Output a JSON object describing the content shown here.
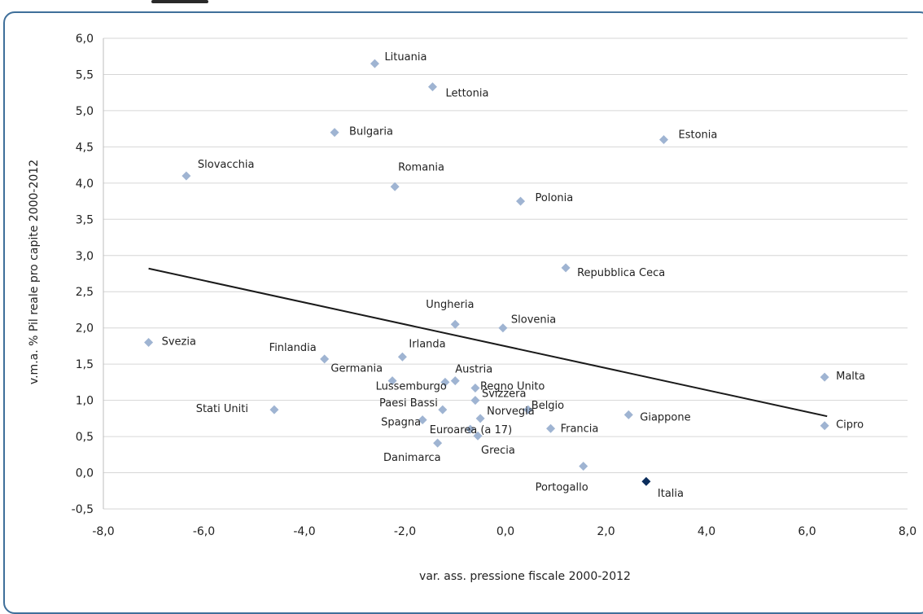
{
  "chart_data": {
    "type": "scatter",
    "title": "",
    "xlabel": "var. ass. pressione fiscale 2000-2012",
    "ylabel": "v.m.a. % Pil reale pro capite 2000-2012",
    "xlim": [
      -8.0,
      8.0
    ],
    "ylim": [
      -0.5,
      6.0
    ],
    "x_ticks": [
      "-8,0",
      "-6,0",
      "-4,0",
      "-2,0",
      "0,0",
      "2,0",
      "4,0",
      "6,0",
      "8,0"
    ],
    "y_ticks": [
      "6,0",
      "5,5",
      "5,0",
      "4,5",
      "4,0",
      "3,5",
      "3,0",
      "2,5",
      "2,0",
      "1,5",
      "1,0",
      "0,5",
      "0,0",
      "-0,5"
    ],
    "grid": "horizontal",
    "marker_color": "#9fb4d2",
    "highlight_color": "#0b2d5c",
    "trendline_color": "#1a1a1a",
    "trendline": {
      "x": [
        -7.1,
        6.4
      ],
      "y": [
        2.82,
        0.78
      ]
    },
    "points": [
      {
        "name": "Lituania",
        "x": -2.6,
        "y": 5.65
      },
      {
        "name": "Lettonia",
        "x": -1.45,
        "y": 5.33
      },
      {
        "name": "Bulgaria",
        "x": -3.4,
        "y": 4.7
      },
      {
        "name": "Estonia",
        "x": 3.15,
        "y": 4.6
      },
      {
        "name": "Slovacchia",
        "x": -6.35,
        "y": 4.1
      },
      {
        "name": "Romania",
        "x": -2.2,
        "y": 3.95
      },
      {
        "name": "Polonia",
        "x": 0.3,
        "y": 3.75
      },
      {
        "name": "Repubblica Ceca",
        "x": 1.2,
        "y": 2.83
      },
      {
        "name": "Ungheria",
        "x": -1.0,
        "y": 2.05
      },
      {
        "name": "Slovenia",
        "x": -0.05,
        "y": 2.0
      },
      {
        "name": "Svezia",
        "x": -7.1,
        "y": 1.8
      },
      {
        "name": "Finlandia",
        "x": -3.6,
        "y": 1.57
      },
      {
        "name": "Irlanda",
        "x": -2.05,
        "y": 1.6
      },
      {
        "name": "Malta",
        "x": 6.35,
        "y": 1.32
      },
      {
        "name": "Germania",
        "x": -2.25,
        "y": 1.27
      },
      {
        "name": "Austria",
        "x": -1.0,
        "y": 1.27
      },
      {
        "name": "Lussemburgo",
        "x": -1.2,
        "y": 1.25
      },
      {
        "name": "Regno Unito",
        "x": -0.6,
        "y": 1.17
      },
      {
        "name": "Svizzera",
        "x": -0.6,
        "y": 1.0
      },
      {
        "name": "Paesi Bassi",
        "x": -1.25,
        "y": 0.87
      },
      {
        "name": "Stati Uniti",
        "x": -4.6,
        "y": 0.87
      },
      {
        "name": "Belgio",
        "x": 0.45,
        "y": 0.87
      },
      {
        "name": "Norvegia",
        "x": -0.5,
        "y": 0.75
      },
      {
        "name": "Giappone",
        "x": 2.45,
        "y": 0.8
      },
      {
        "name": "Spagna",
        "x": -1.65,
        "y": 0.73
      },
      {
        "name": "Euroarea (a 17)",
        "x": -0.7,
        "y": 0.6
      },
      {
        "name": "Francia",
        "x": 0.9,
        "y": 0.61
      },
      {
        "name": "Cipro",
        "x": 6.35,
        "y": 0.65
      },
      {
        "name": "Grecia",
        "x": -0.55,
        "y": 0.51
      },
      {
        "name": "Danimarca",
        "x": -1.35,
        "y": 0.41
      },
      {
        "name": "Portogallo",
        "x": 1.55,
        "y": 0.09
      },
      {
        "name": "Italia",
        "x": 2.8,
        "y": -0.12,
        "highlight": true
      }
    ]
  }
}
